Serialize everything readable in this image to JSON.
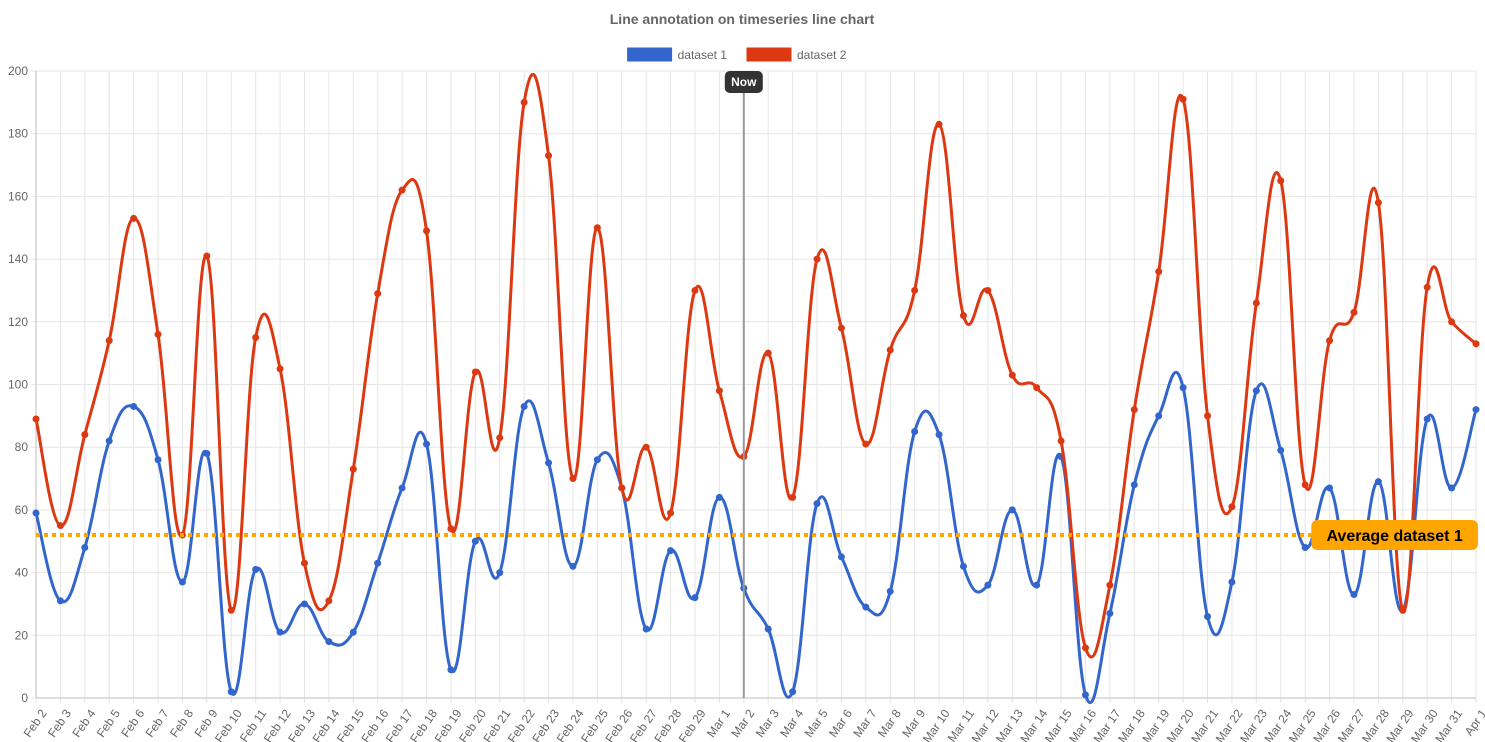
{
  "chart_data": {
    "type": "line",
    "title": "Line annotation on timeseries line chart",
    "x_type": "time",
    "categories": [
      "Feb 2",
      "Feb 3",
      "Feb 4",
      "Feb 5",
      "Feb 6",
      "Feb 7",
      "Feb 8",
      "Feb 9",
      "Feb 10",
      "Feb 11",
      "Feb 12",
      "Feb 13",
      "Feb 14",
      "Feb 15",
      "Feb 16",
      "Feb 17",
      "Feb 18",
      "Feb 19",
      "Feb 20",
      "Feb 21",
      "Feb 22",
      "Feb 23",
      "Feb 24",
      "Feb 25",
      "Feb 26",
      "Feb 27",
      "Feb 28",
      "Feb 29",
      "Mar 1",
      "Mar 2",
      "Mar 3",
      "Mar 4",
      "Mar 5",
      "Mar 6",
      "Mar 7",
      "Mar 8",
      "Mar 9",
      "Mar 10",
      "Mar 11",
      "Mar 12",
      "Mar 13",
      "Mar 14",
      "Mar 15",
      "Mar 16",
      "Mar 17",
      "Mar 18",
      "Mar 19",
      "Mar 20",
      "Mar 21",
      "Mar 22",
      "Mar 23",
      "Mar 24",
      "Mar 25",
      "Mar 26",
      "Mar 27",
      "Mar 28",
      "Mar 29",
      "Mar 30",
      "Mar 31",
      "Apr 1"
    ],
    "series": [
      {
        "name": "dataset 1",
        "color": "#3366cc",
        "values": [
          59,
          31,
          48,
          82,
          93,
          76,
          37,
          78,
          2,
          41,
          21,
          30,
          18,
          21,
          43,
          67,
          81,
          9,
          50,
          40,
          93,
          75,
          42,
          76,
          67,
          22,
          47,
          32,
          64,
          35,
          22,
          2,
          62,
          45,
          29,
          34,
          85,
          84,
          42,
          36,
          60,
          36,
          77,
          1,
          27,
          68,
          90,
          99,
          26,
          37,
          98,
          79,
          48,
          67,
          33,
          69,
          28,
          89,
          67,
          92
        ]
      },
      {
        "name": "dataset 2",
        "color": "#dc3912",
        "values": [
          89,
          55,
          84,
          114,
          153,
          116,
          52,
          141,
          28,
          115,
          105,
          43,
          31,
          73,
          129,
          162,
          149,
          54,
          104,
          83,
          190,
          173,
          70,
          150,
          67,
          80,
          59,
          130,
          98,
          77,
          110,
          64,
          140,
          118,
          81,
          111,
          130,
          183,
          122,
          130,
          103,
          99,
          82,
          16,
          36,
          92,
          136,
          191,
          90,
          61,
          126,
          165,
          68,
          114,
          123,
          158,
          28,
          131,
          120,
          113
        ]
      }
    ],
    "ylim": [
      0,
      200
    ],
    "y_ticks": [
      0,
      20,
      40,
      60,
      80,
      100,
      120,
      140,
      160,
      180,
      200
    ],
    "grid": true,
    "legend_position": "top",
    "annotations": [
      {
        "type": "vertical-line",
        "label": "Now",
        "x": "Mar 2",
        "color": "#999999",
        "label_bg": "#333333"
      },
      {
        "type": "horizontal-line",
        "label": "Average dataset 1",
        "y": 52,
        "color": "#ffa500",
        "style": "dotted"
      }
    ]
  }
}
